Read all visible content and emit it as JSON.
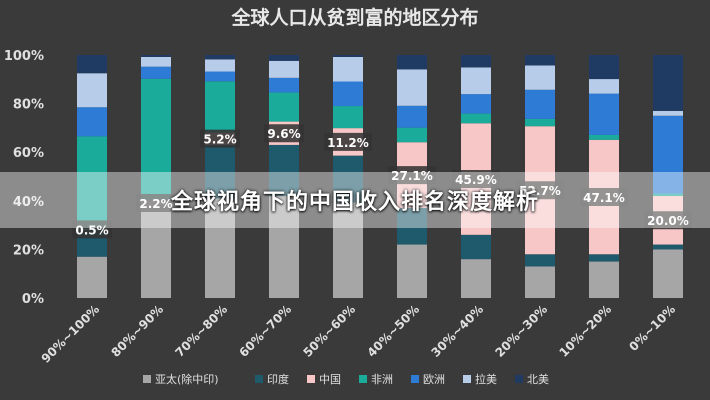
{
  "banner": {
    "text": "全球视角下的中国收入排名深度解析"
  },
  "chart_data": {
    "type": "bar",
    "stacked": true,
    "title": "全球人口从贫到富的地区分布",
    "xlabel": "",
    "ylabel": "",
    "ylim": [
      0,
      100
    ],
    "yticks": [
      "0%",
      "20%",
      "40%",
      "60%",
      "80%",
      "100%"
    ],
    "grid": false,
    "legend_position": "bottom",
    "categories": [
      "90%~100%",
      "80%~90%",
      "70%~80%",
      "60%~70%",
      "50%~60%",
      "40%~50%",
      "30%~40%",
      "20%~30%",
      "10%~20%",
      "0%~10%"
    ],
    "series": [
      {
        "name": "亚太(除中印)",
        "color": "#a6a6a6",
        "values": [
          17,
          38,
          41,
          42,
          39,
          22,
          16,
          13,
          15,
          20
        ]
      },
      {
        "name": "印度",
        "color": "#1e5a6b",
        "values": [
          11,
          0,
          22,
          21,
          19,
          15,
          10,
          5,
          3,
          2
        ]
      },
      {
        "name": "中国",
        "color": "#f7c6c6",
        "values": [
          0.5,
          2.2,
          5.2,
          9.6,
          11.2,
          27.1,
          45.9,
          52.7,
          47.1,
          20.0
        ]
      },
      {
        "name": "非洲",
        "color": "#1aab9b",
        "values": [
          38,
          50,
          21,
          12,
          9,
          6,
          4,
          3,
          2,
          1
        ]
      },
      {
        "name": "欧洲",
        "color": "#2e7bd6",
        "values": [
          12,
          5,
          4,
          6,
          10,
          9,
          8,
          12,
          17,
          32
        ]
      },
      {
        "name": "拉美",
        "color": "#b7cce9",
        "values": [
          14,
          4,
          5,
          7,
          10,
          15,
          11,
          10,
          6,
          2
        ]
      },
      {
        "name": "北美",
        "color": "#1f3a63",
        "values": [
          7.5,
          0.8,
          1.8,
          2.4,
          0.8,
          5.9,
          5.1,
          4.3,
          9.9,
          23
        ]
      }
    ],
    "data_labels": [
      "0.5%",
      "2.2%",
      "5.2%",
      "9.6%",
      "11.2%",
      "27.1%",
      "45.9%",
      "52.7%",
      "47.1%",
      "20.0%"
    ]
  }
}
